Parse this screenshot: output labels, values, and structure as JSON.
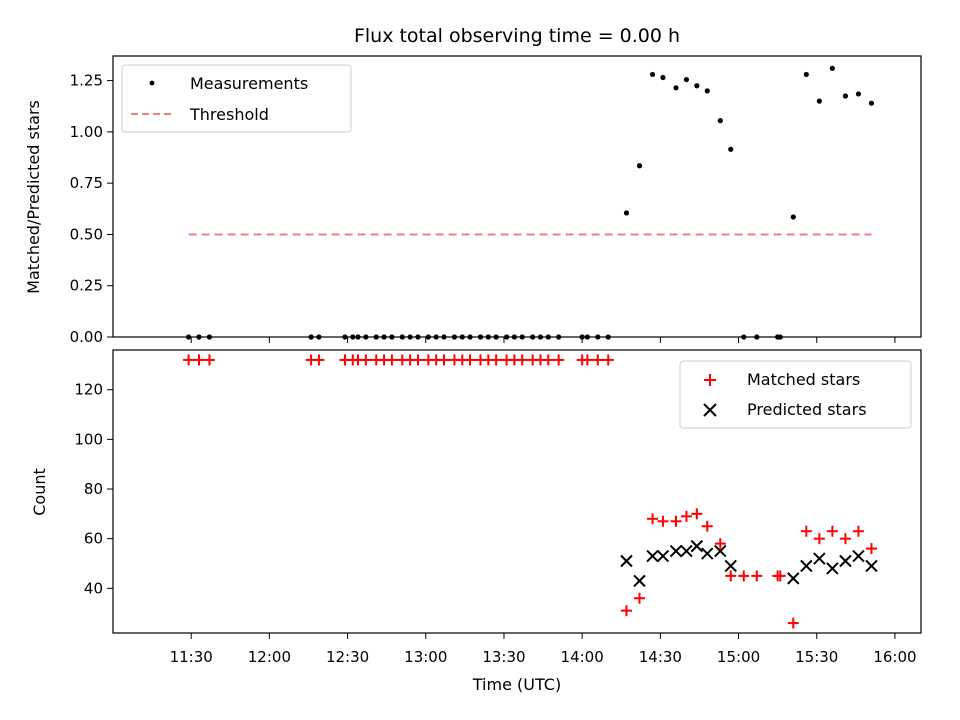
{
  "chart_data": [
    {
      "type": "scatter",
      "title": "Flux total observing time = 0.00 h",
      "ylabel": "Matched/Predicted stars",
      "xlabel": "",
      "ylim": [
        0,
        1.37
      ],
      "yticks": [
        "0.00",
        "0.25",
        "0.50",
        "0.75",
        "1.00",
        "1.25"
      ],
      "legend": {
        "position": "top-left"
      },
      "series": [
        {
          "name": "Measurements",
          "marker": "dot",
          "color": "#000000",
          "x": [
            "11:29",
            "11:33",
            "11:37",
            "12:16",
            "12:19",
            "12:29",
            "12:32",
            "12:34",
            "12:37",
            "12:41",
            "12:44",
            "12:47",
            "12:51",
            "12:54",
            "12:57",
            "13:01",
            "13:04",
            "13:07",
            "13:11",
            "13:14",
            "13:17",
            "13:21",
            "13:24",
            "13:27",
            "13:31",
            "13:34",
            "13:37",
            "13:41",
            "13:44",
            "13:47",
            "13:51",
            "14:00",
            "14:02",
            "14:06",
            "14:10",
            "14:17",
            "14:22",
            "14:27",
            "14:31",
            "14:36",
            "14:40",
            "14:44",
            "14:48",
            "14:53",
            "14:57",
            "15:02",
            "15:07",
            "15:15",
            "15:16",
            "15:21",
            "15:26",
            "15:31",
            "15:36",
            "15:41",
            "15:46",
            "15:51"
          ],
          "y": [
            0,
            0,
            0,
            0,
            0,
            0,
            0,
            0,
            0,
            0,
            0,
            0,
            0,
            0,
            0,
            0,
            0,
            0,
            0,
            0,
            0,
            0,
            0,
            0,
            0,
            0,
            0,
            0,
            0,
            0,
            0,
            0,
            0,
            0,
            0,
            0.605,
            0.835,
            1.28,
            1.265,
            1.215,
            1.255,
            1.225,
            1.2,
            1.055,
            0.915,
            0,
            0,
            0,
            0,
            0.585,
            1.28,
            1.15,
            1.31,
            1.175,
            1.185,
            1.14
          ]
        },
        {
          "name": "Threshold",
          "marker": "dashed-line",
          "color": "#f08080",
          "x": [
            "11:29",
            "15:51"
          ],
          "y": [
            0.5,
            0.5
          ]
        }
      ]
    },
    {
      "type": "scatter",
      "title": "",
      "xlabel": "Time (UTC)",
      "ylabel": "Count",
      "ylim": [
        22,
        136
      ],
      "yticks": [
        "40",
        "60",
        "80",
        "100",
        "120"
      ],
      "xticks": [
        "11:30",
        "12:00",
        "12:30",
        "13:00",
        "13:30",
        "14:00",
        "14:30",
        "15:00",
        "15:30",
        "16:00"
      ],
      "legend": {
        "position": "top-right"
      },
      "series": [
        {
          "name": "Matched stars",
          "marker": "plus",
          "color": "#ff0000",
          "x": [
            "11:29",
            "11:33",
            "11:37",
            "12:16",
            "12:19",
            "12:29",
            "12:32",
            "12:34",
            "12:37",
            "12:41",
            "12:44",
            "12:47",
            "12:51",
            "12:54",
            "12:57",
            "13:01",
            "13:04",
            "13:07",
            "13:11",
            "13:14",
            "13:17",
            "13:21",
            "13:24",
            "13:27",
            "13:31",
            "13:34",
            "13:37",
            "13:41",
            "13:44",
            "13:47",
            "13:51",
            "14:00",
            "14:02",
            "14:06",
            "14:10",
            "14:17",
            "14:22",
            "14:27",
            "14:31",
            "14:36",
            "14:40",
            "14:44",
            "14:48",
            "14:53",
            "14:57",
            "15:02",
            "15:07",
            "15:15",
            "15:16",
            "15:21",
            "15:26",
            "15:31",
            "15:36",
            "15:41",
            "15:46",
            "15:51"
          ],
          "y": [
            132,
            132,
            132,
            132,
            132,
            132,
            132,
            132,
            132,
            132,
            132,
            132,
            132,
            132,
            132,
            132,
            132,
            132,
            132,
            132,
            132,
            132,
            132,
            132,
            132,
            132,
            132,
            132,
            132,
            132,
            132,
            132,
            132,
            132,
            132,
            31,
            36,
            68,
            67,
            67,
            69,
            70,
            65,
            58,
            45,
            45,
            45,
            45,
            45,
            26,
            63,
            60,
            63,
            60,
            63,
            56
          ]
        },
        {
          "name": "Predicted stars",
          "marker": "x",
          "color": "#000000",
          "x": [
            "14:17",
            "14:22",
            "14:27",
            "14:31",
            "14:36",
            "14:40",
            "14:44",
            "14:48",
            "14:53",
            "14:57",
            "15:21",
            "15:26",
            "15:31",
            "15:36",
            "15:41",
            "15:46",
            "15:51"
          ],
          "y": [
            51,
            43,
            53,
            53,
            55,
            55,
            57,
            54,
            55,
            49,
            44,
            49,
            52,
            48,
            51,
            53,
            49
          ]
        }
      ]
    }
  ]
}
